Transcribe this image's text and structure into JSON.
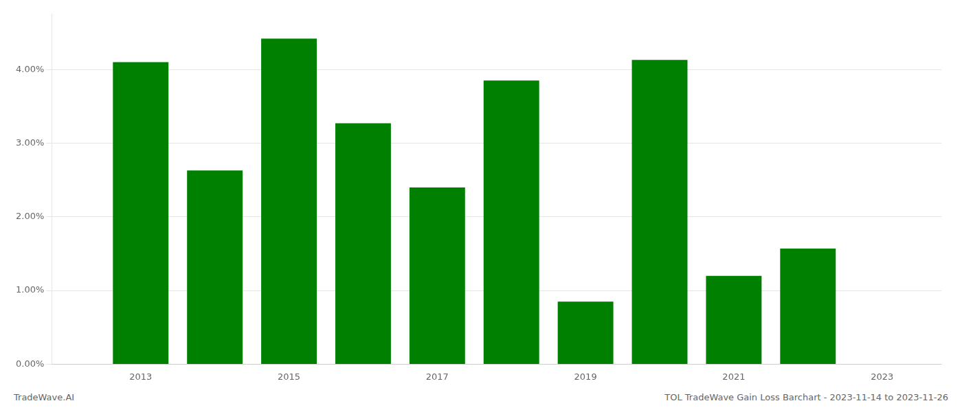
{
  "chart_data": {
    "type": "bar",
    "x": [
      2013,
      2014,
      2015,
      2016,
      2017,
      2018,
      2019,
      2020,
      2021,
      2022
    ],
    "values": [
      0.041,
      0.0263,
      0.0442,
      0.0327,
      0.024,
      0.0385,
      0.0085,
      0.0413,
      0.012,
      0.0157
    ],
    "color": "#008000",
    "xlim": [
      2011.8,
      2023.8
    ],
    "xticks": [
      2013,
      2015,
      2017,
      2019,
      2021,
      2023
    ],
    "ylim": [
      0,
      0.0475
    ],
    "yticks": [
      {
        "value": 0.0,
        "label": "0.00%"
      },
      {
        "value": 0.01,
        "label": "1.00%"
      },
      {
        "value": 0.02,
        "label": "2.00%"
      },
      {
        "value": 0.03,
        "label": "3.00%"
      },
      {
        "value": 0.04,
        "label": "4.00%"
      }
    ],
    "grid": true,
    "annotations": [
      "TradeWave.AI",
      "TOL TradeWave Gain Loss Barchart - 2023-11-14 to 2023-11-26"
    ]
  }
}
